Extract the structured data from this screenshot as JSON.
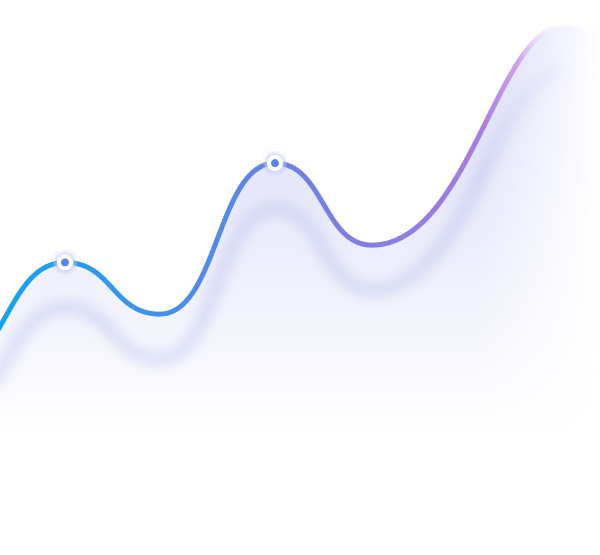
{
  "chart_data": {
    "type": "line",
    "x": [
      0,
      1,
      2,
      3,
      4,
      5
    ],
    "values": [
      22,
      40,
      28,
      63,
      44,
      95
    ],
    "ylim": [
      0,
      100
    ],
    "grid": false,
    "highlighted_points": [
      1,
      3
    ],
    "colors": {
      "line_start": "#0ea5f5",
      "line_mid": "#6f7fe6",
      "line_end": "#b57be0",
      "area": "#c9cdf4",
      "marker_fill": "#ffffff",
      "marker_dot": "#5b83ec"
    }
  }
}
